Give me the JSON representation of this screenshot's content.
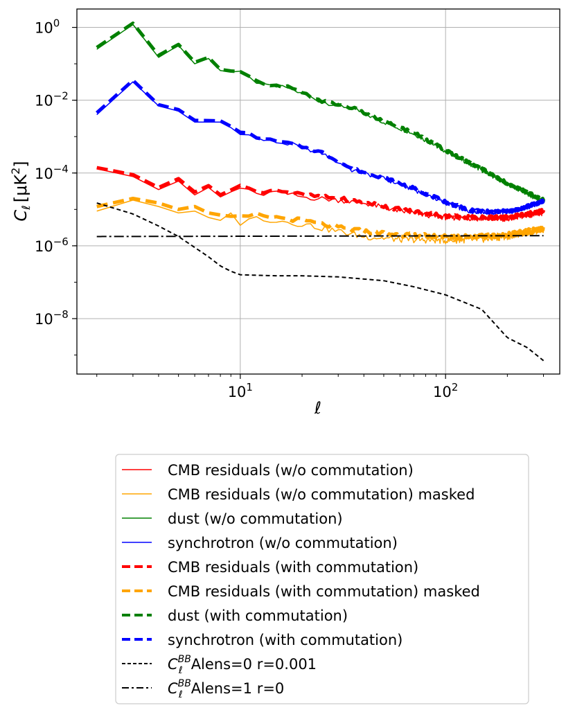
{
  "chart_data": {
    "type": "line",
    "xscale": "log",
    "yscale": "log",
    "xlim": [
      1.6,
      360
    ],
    "ylim": [
      3e-10,
      3.2
    ],
    "xlabel": "ℓ",
    "ylabel": "C",
    "ylabel_sub": "ℓ",
    "ylabel_unit": "[μK",
    "ylabel_unit_sup": "2",
    "ylabel_unit_close": "]",
    "grid": true,
    "legend_position": "below",
    "x_ticks": [
      {
        "base": "10",
        "exp": "1",
        "value": 10
      },
      {
        "base": "10",
        "exp": "2",
        "value": 100
      }
    ],
    "y_ticks": [
      {
        "base": "10",
        "exp": "0",
        "value": 1
      },
      {
        "base": "10",
        "exp": "−2",
        "value": 0.01
      },
      {
        "base": "10",
        "exp": "−4",
        "value": 0.0001
      },
      {
        "base": "10",
        "exp": "−6",
        "value": 1e-06
      },
      {
        "base": "10",
        "exp": "−8",
        "value": 1e-08
      }
    ],
    "series": [
      {
        "name": "dust (w/o commutation)",
        "color": "#008000",
        "style": "solid",
        "width": 1.5,
        "noise": 0.12,
        "points": [
          [
            2,
            0.25
          ],
          [
            3,
            1.2
          ],
          [
            4,
            0.15
          ],
          [
            5,
            0.32
          ],
          [
            6,
            0.1
          ],
          [
            7,
            0.14
          ],
          [
            8,
            0.065
          ],
          [
            10,
            0.055
          ],
          [
            13,
            0.025
          ],
          [
            17,
            0.022
          ],
          [
            25,
            0.009
          ],
          [
            35,
            0.006
          ],
          [
            50,
            0.0025
          ],
          [
            70,
            0.0012
          ],
          [
            100,
            0.0004
          ],
          [
            150,
            0.00012
          ],
          [
            200,
            5e-05
          ],
          [
            300,
            1.6e-05
          ]
        ]
      },
      {
        "name": "synchrotron (w/o commutation)",
        "color": "#0000ff",
        "style": "solid",
        "width": 1.5,
        "noise": 0.12,
        "points": [
          [
            2,
            0.004
          ],
          [
            3,
            0.032
          ],
          [
            4,
            0.007
          ],
          [
            5,
            0.005
          ],
          [
            6,
            0.0025
          ],
          [
            8,
            0.0025
          ],
          [
            10,
            0.0013
          ],
          [
            13,
            0.0008
          ],
          [
            18,
            0.0006
          ],
          [
            25,
            0.00035
          ],
          [
            35,
            0.00012
          ],
          [
            50,
            7e-05
          ],
          [
            70,
            3.5e-05
          ],
          [
            100,
            1.5e-05
          ],
          [
            130,
            9e-06
          ],
          [
            170,
            8e-06
          ],
          [
            220,
            9e-06
          ],
          [
            300,
            1.6e-05
          ]
        ]
      },
      {
        "name": "CMB residuals (w/o commutation)",
        "color": "#ff0000",
        "style": "solid",
        "width": 1.5,
        "noise": 0.14,
        "points": [
          [
            2,
            0.00013
          ],
          [
            3,
            8e-05
          ],
          [
            4,
            3.5e-05
          ],
          [
            5,
            6e-05
          ],
          [
            6,
            2.5e-05
          ],
          [
            7,
            4e-05
          ],
          [
            8,
            2.2e-05
          ],
          [
            10,
            4e-05
          ],
          [
            12,
            2.5e-05
          ],
          [
            15,
            3e-05
          ],
          [
            20,
            2.2e-05
          ],
          [
            30,
            1.8e-05
          ],
          [
            40,
            1.5e-05
          ],
          [
            60,
            9e-06
          ],
          [
            80,
            7e-06
          ],
          [
            100,
            6e-06
          ],
          [
            150,
            5.5e-06
          ],
          [
            200,
            5.5e-06
          ],
          [
            300,
            8e-06
          ]
        ]
      },
      {
        "name": "CMB residuals (w/o commutation) masked",
        "color": "#ffa500",
        "style": "solid",
        "width": 1.5,
        "noise": 0.18,
        "points": [
          [
            2,
            9e-06
          ],
          [
            3,
            1.8e-05
          ],
          [
            4,
            1.2e-05
          ],
          [
            5,
            8e-06
          ],
          [
            6,
            9e-06
          ],
          [
            7,
            6e-06
          ],
          [
            8,
            5e-06
          ],
          [
            9,
            8e-06
          ],
          [
            10,
            4e-06
          ],
          [
            12,
            6e-06
          ],
          [
            15,
            5e-06
          ],
          [
            20,
            4e-06
          ],
          [
            30,
            2.5e-06
          ],
          [
            40,
            1.8e-06
          ],
          [
            60,
            1.5e-06
          ],
          [
            100,
            1.4e-06
          ],
          [
            150,
            1.5e-06
          ],
          [
            200,
            1.8e-06
          ],
          [
            300,
            2.8e-06
          ]
        ]
      },
      {
        "name": "CMB residuals (with commutation)",
        "color": "#ff0000",
        "style": "dashed",
        "width": 5,
        "noise": 0.1,
        "points": [
          [
            2,
            0.00014
          ],
          [
            3,
            9e-05
          ],
          [
            4,
            4e-05
          ],
          [
            5,
            7e-05
          ],
          [
            6,
            3e-05
          ],
          [
            7,
            4.5e-05
          ],
          [
            8,
            2.5e-05
          ],
          [
            10,
            4.5e-05
          ],
          [
            12,
            3e-05
          ],
          [
            15,
            3.5e-05
          ],
          [
            20,
            2.5e-05
          ],
          [
            30,
            2e-05
          ],
          [
            40,
            1.6e-05
          ],
          [
            60,
            1e-05
          ],
          [
            80,
            8e-06
          ],
          [
            100,
            6.5e-06
          ],
          [
            150,
            6e-06
          ],
          [
            200,
            6e-06
          ],
          [
            300,
            9e-06
          ]
        ]
      },
      {
        "name": "CMB residuals (with commutation) masked",
        "color": "#ffa500",
        "style": "dashed",
        "width": 5,
        "noise": 0.12,
        "points": [
          [
            2,
            1.2e-05
          ],
          [
            3,
            2e-05
          ],
          [
            4,
            1.5e-05
          ],
          [
            5,
            1e-05
          ],
          [
            6,
            1.2e-05
          ],
          [
            7,
            8e-06
          ],
          [
            8,
            7e-06
          ],
          [
            10,
            6e-06
          ],
          [
            12,
            7e-06
          ],
          [
            15,
            6e-06
          ],
          [
            20,
            5e-06
          ],
          [
            30,
            3.2e-06
          ],
          [
            40,
            2.5e-06
          ],
          [
            60,
            2e-06
          ],
          [
            100,
            1.8e-06
          ],
          [
            150,
            1.8e-06
          ],
          [
            200,
            2e-06
          ],
          [
            300,
            3e-06
          ]
        ]
      },
      {
        "name": "dust (with commutation)",
        "color": "#008000",
        "style": "dashed",
        "width": 5,
        "noise": 0.08,
        "points": [
          [
            2,
            0.28
          ],
          [
            3,
            1.3
          ],
          [
            4,
            0.17
          ],
          [
            5,
            0.34
          ],
          [
            6,
            0.11
          ],
          [
            7,
            0.15
          ],
          [
            8,
            0.07
          ],
          [
            10,
            0.058
          ],
          [
            13,
            0.026
          ],
          [
            17,
            0.023
          ],
          [
            25,
            0.0095
          ],
          [
            35,
            0.0062
          ],
          [
            50,
            0.0026
          ],
          [
            70,
            0.0013
          ],
          [
            100,
            0.00042
          ],
          [
            150,
            0.00013
          ],
          [
            200,
            5.2e-05
          ],
          [
            300,
            1.8e-05
          ]
        ]
      },
      {
        "name": "synchrotron (with commutation)",
        "color": "#0000ff",
        "style": "dashed",
        "width": 5,
        "noise": 0.08,
        "points": [
          [
            2,
            0.0045
          ],
          [
            3,
            0.035
          ],
          [
            4,
            0.0075
          ],
          [
            5,
            0.0055
          ],
          [
            6,
            0.0028
          ],
          [
            8,
            0.0027
          ],
          [
            10,
            0.0014
          ],
          [
            13,
            0.00085
          ],
          [
            18,
            0.00062
          ],
          [
            25,
            0.00037
          ],
          [
            35,
            0.00013
          ],
          [
            50,
            7.5e-05
          ],
          [
            70,
            3.8e-05
          ],
          [
            100,
            1.6e-05
          ],
          [
            130,
            9.5e-06
          ],
          [
            170,
            8.5e-06
          ],
          [
            220,
            9.5e-06
          ],
          [
            300,
            1.7e-05
          ]
        ]
      },
      {
        "name": "Alens=0 r=0.001",
        "label_base": "C",
        "label_sub": "ℓ",
        "label_sup": "BB",
        "color": "#000000",
        "style": "dotted-dash",
        "width": 2,
        "noise": 0,
        "points": [
          [
            2,
            1.5e-05
          ],
          [
            3,
            7.5e-06
          ],
          [
            4,
            3.5e-06
          ],
          [
            5,
            1.8e-06
          ],
          [
            6,
            9e-07
          ],
          [
            7,
            5e-07
          ],
          [
            8,
            2.8e-07
          ],
          [
            9,
            2e-07
          ],
          [
            10,
            1.6e-07
          ],
          [
            15,
            1.5e-07
          ],
          [
            20,
            1.5e-07
          ],
          [
            30,
            1.4e-07
          ],
          [
            50,
            1.1e-07
          ],
          [
            70,
            7.5e-08
          ],
          [
            100,
            4.5e-08
          ],
          [
            150,
            1.8e-08
          ],
          [
            200,
            3e-09
          ],
          [
            250,
            1.6e-09
          ],
          [
            300,
            7e-10
          ]
        ]
      },
      {
        "name": "Alens=1 r=0",
        "label_base": "C",
        "label_sub": "ℓ",
        "label_sup": "BB",
        "color": "#000000",
        "style": "dashdot",
        "width": 2,
        "noise": 0,
        "points": [
          [
            2,
            1.8e-06
          ],
          [
            300,
            1.9e-06
          ]
        ]
      }
    ]
  }
}
